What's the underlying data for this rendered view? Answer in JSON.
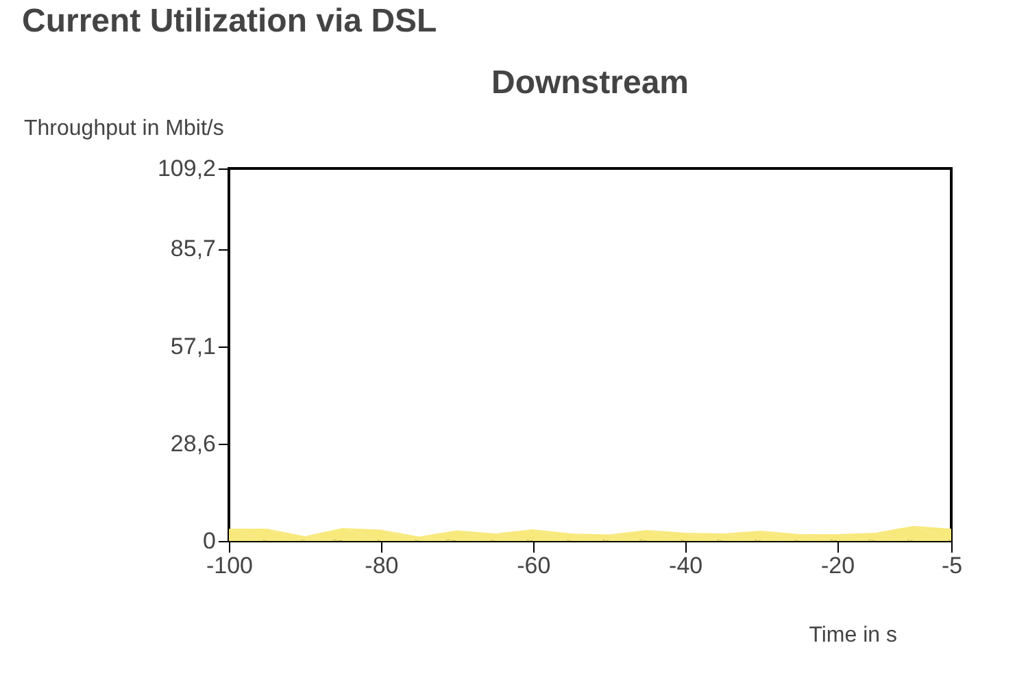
{
  "chart_data": {
    "type": "area",
    "title": "Current Utilization via DSL",
    "subtitle": "Downstream",
    "xlabel": "Time in s",
    "ylabel": "Throughput in Mbit/s",
    "x": [
      -100,
      -95,
      -90,
      -85,
      -80,
      -75,
      -70,
      -65,
      -60,
      -55,
      -50,
      -45,
      -40,
      -35,
      -30,
      -25,
      -20,
      -15,
      -10,
      -5
    ],
    "series": [
      {
        "color": "#f8e97c",
        "values": [
          3.6,
          3.6,
          1.4,
          3.8,
          3.3,
          1.3,
          3.1,
          2.2,
          3.4,
          2.2,
          1.9,
          3.2,
          2.4,
          2.2,
          3.0,
          2.0,
          2.0,
          2.4,
          4.4,
          3.6
        ]
      }
    ],
    "xlim": [
      -100,
      -5
    ],
    "xticks": [
      -100,
      -80,
      -60,
      -40,
      -20,
      -5
    ],
    "ylim": [
      0,
      109.2
    ],
    "yticks": [
      0,
      {
        "value": 28.6,
        "label": "28,6"
      },
      {
        "value": 57.1,
        "label": "57,1"
      },
      {
        "value": 85.7,
        "label": "85,7"
      },
      {
        "value": 109.2,
        "label": "109,2"
      }
    ],
    "grid": false
  }
}
